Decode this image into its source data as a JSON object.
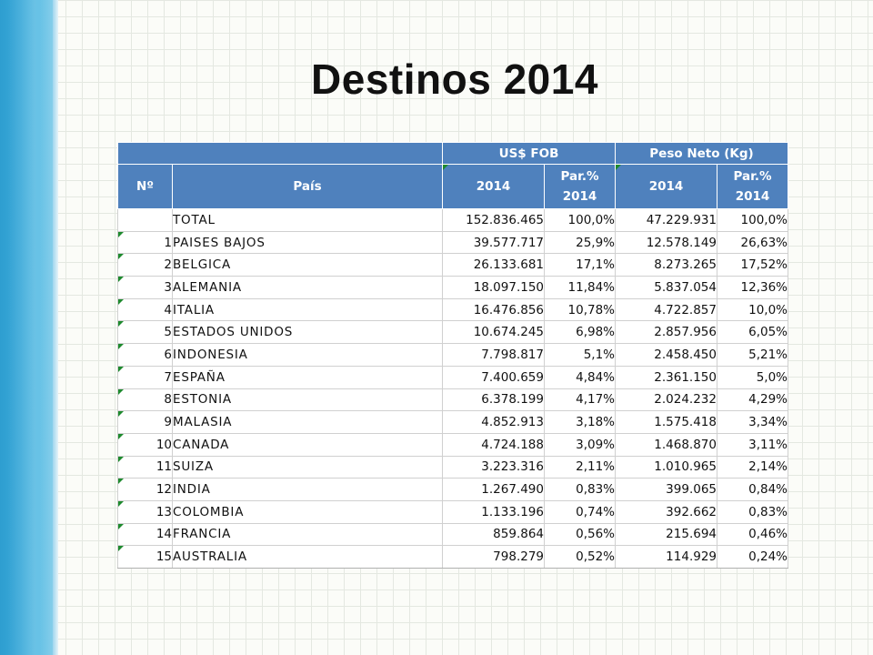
{
  "title": "Destinos 2014",
  "table": {
    "group_headers": {
      "fob": "US$ FOB",
      "peso": "Peso Neto (Kg)"
    },
    "headers": {
      "no": "Nº",
      "pais": "País",
      "fob_year": "2014",
      "fob_par_line1": "Par.%",
      "fob_par_line2": "2014",
      "peso_year": "2014",
      "peso_par_line1": "Par.%",
      "peso_par_line2": "2014"
    },
    "total": {
      "label": "TOTAL",
      "fob": "152.836.465",
      "fob_par": "100,0%",
      "peso": "47.229.931",
      "peso_par": "100,0%"
    },
    "rows": [
      {
        "no": "1",
        "pais": "PAISES BAJOS",
        "fob": "39.577.717",
        "fob_par": "25,9%",
        "peso": "12.578.149",
        "peso_par": "26,63%"
      },
      {
        "no": "2",
        "pais": "BELGICA",
        "fob": "26.133.681",
        "fob_par": "17,1%",
        "peso": "8.273.265",
        "peso_par": "17,52%"
      },
      {
        "no": "3",
        "pais": "ALEMANIA",
        "fob": "18.097.150",
        "fob_par": "11,84%",
        "peso": "5.837.054",
        "peso_par": "12,36%"
      },
      {
        "no": "4",
        "pais": "ITALIA",
        "fob": "16.476.856",
        "fob_par": "10,78%",
        "peso": "4.722.857",
        "peso_par": "10,0%"
      },
      {
        "no": "5",
        "pais": "ESTADOS UNIDOS",
        "fob": "10.674.245",
        "fob_par": "6,98%",
        "peso": "2.857.956",
        "peso_par": "6,05%"
      },
      {
        "no": "6",
        "pais": "INDONESIA",
        "fob": "7.798.817",
        "fob_par": "5,1%",
        "peso": "2.458.450",
        "peso_par": "5,21%"
      },
      {
        "no": "7",
        "pais": "ESPAÑA",
        "fob": "7.400.659",
        "fob_par": "4,84%",
        "peso": "2.361.150",
        "peso_par": "5,0%"
      },
      {
        "no": "8",
        "pais": "ESTONIA",
        "fob": "6.378.199",
        "fob_par": "4,17%",
        "peso": "2.024.232",
        "peso_par": "4,29%"
      },
      {
        "no": "9",
        "pais": "MALASIA",
        "fob": "4.852.913",
        "fob_par": "3,18%",
        "peso": "1.575.418",
        "peso_par": "3,34%"
      },
      {
        "no": "10",
        "pais": "CANADA",
        "fob": "4.724.188",
        "fob_par": "3,09%",
        "peso": "1.468.870",
        "peso_par": "3,11%"
      },
      {
        "no": "11",
        "pais": "SUIZA",
        "fob": "3.223.316",
        "fob_par": "2,11%",
        "peso": "1.010.965",
        "peso_par": "2,14%"
      },
      {
        "no": "12",
        "pais": "INDIA",
        "fob": "1.267.490",
        "fob_par": "0,83%",
        "peso": "399.065",
        "peso_par": "0,84%"
      },
      {
        "no": "13",
        "pais": "COLOMBIA",
        "fob": "1.133.196",
        "fob_par": "0,74%",
        "peso": "392.662",
        "peso_par": "0,83%"
      },
      {
        "no": "14",
        "pais": "FRANCIA",
        "fob": "859.864",
        "fob_par": "0,56%",
        "peso": "215.694",
        "peso_par": "0,46%"
      },
      {
        "no": "15",
        "pais": "AUSTRALIA",
        "fob": "798.279",
        "fob_par": "0,52%",
        "peso": "114.929",
        "peso_par": "0,24%"
      }
    ]
  },
  "colors": {
    "header_fill": "#4f81bd",
    "side_band": "#3aa9d9",
    "error_marker": "#1e8a2e"
  }
}
